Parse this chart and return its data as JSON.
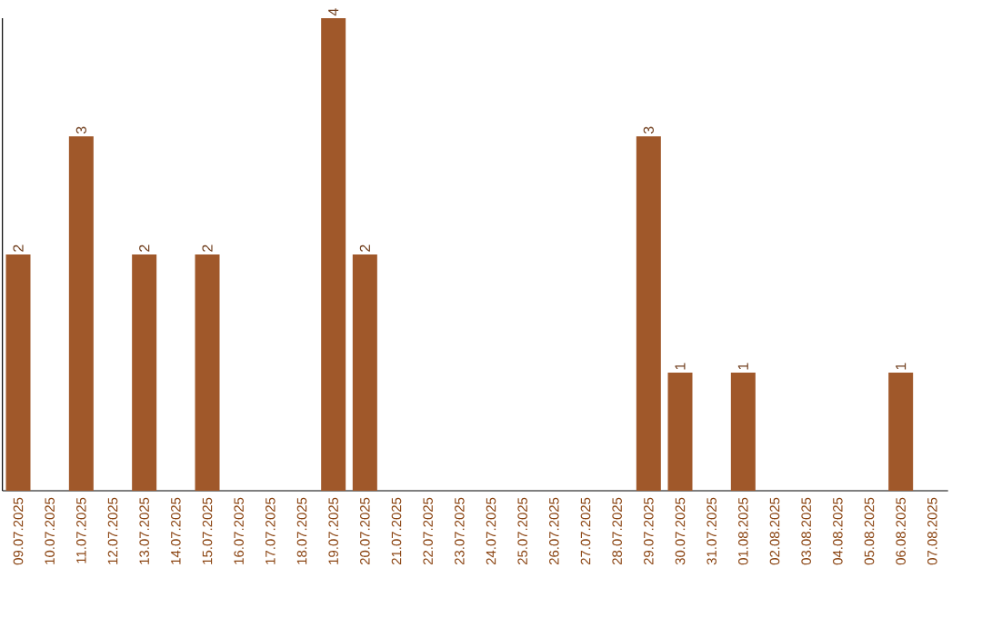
{
  "chart_data": {
    "type": "bar",
    "categories": [
      "09.07.2025",
      "10.07.2025",
      "11.07.2025",
      "12.07.2025",
      "13.07.2025",
      "14.07.2025",
      "15.07.2025",
      "16.07.2025",
      "17.07.2025",
      "18.07.2025",
      "19.07.2025",
      "20.07.2025",
      "21.07.2025",
      "22.07.2025",
      "23.07.2025",
      "24.07.2025",
      "25.07.2025",
      "26.07.2025",
      "27.07.2025",
      "28.07.2025",
      "29.07.2025",
      "30.07.2025",
      "31.07.2025",
      "01.08.2025",
      "02.08.2025",
      "03.08.2025",
      "04.08.2025",
      "05.08.2025",
      "06.08.2025",
      "07.08.2025"
    ],
    "values": [
      2,
      0,
      3,
      0,
      2,
      0,
      2,
      0,
      0,
      0,
      4,
      2,
      0,
      0,
      0,
      0,
      0,
      0,
      0,
      0,
      3,
      1,
      0,
      1,
      0,
      0,
      0,
      0,
      1,
      0
    ],
    "value_labels": [
      "2",
      null,
      "3",
      null,
      "2",
      null,
      "2",
      null,
      null,
      null,
      "4",
      "2",
      null,
      null,
      null,
      null,
      null,
      null,
      null,
      null,
      "3",
      "1",
      null,
      "1",
      null,
      null,
      null,
      null,
      "1",
      null
    ],
    "color": "#a0582a",
    "tick_labels": "x",
    "grid": false
  }
}
